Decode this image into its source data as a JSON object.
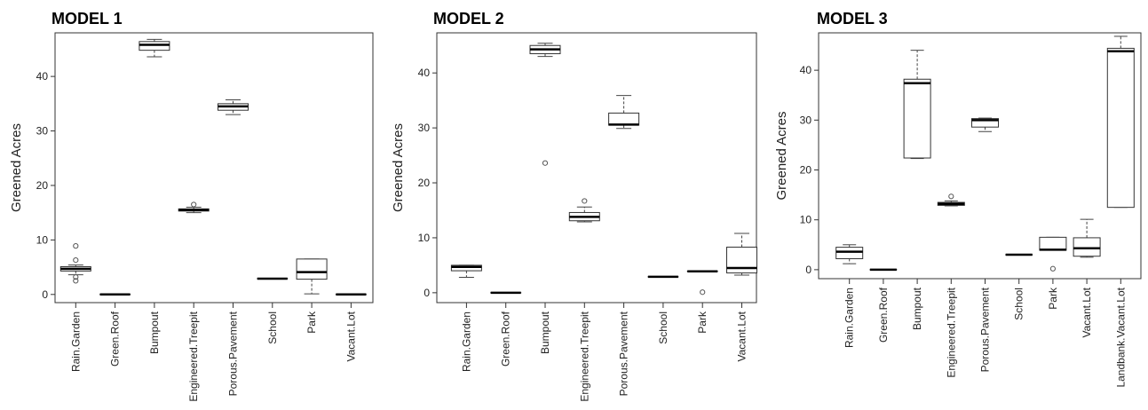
{
  "chart_data": [
    {
      "type": "boxplot",
      "title": "MODEL 1",
      "ylabel": "Greened Acres",
      "xlabel": "",
      "ylim": [
        -1.5,
        48
      ],
      "yticks": [
        0,
        10,
        20,
        30,
        40
      ],
      "categories": [
        "Rain.Garden",
        "Green.Roof",
        "Bumpout",
        "Engineered.Treepit",
        "Porous.Pavement",
        "School",
        "Park",
        "Vacant.Lot"
      ],
      "boxes": [
        {
          "min": 3.6,
          "q1": 4.3,
          "median": 4.7,
          "q3": 5.1,
          "max": 5.4,
          "outliers": [
            8.9,
            6.3,
            3.2,
            2.5
          ]
        },
        {
          "min": 0,
          "q1": 0,
          "median": 0,
          "q3": 0,
          "max": 0,
          "outliers": []
        },
        {
          "min": 43.6,
          "q1": 44.8,
          "median": 45.8,
          "q3": 46.4,
          "max": 46.8,
          "outliers": []
        },
        {
          "min": 15.0,
          "q1": 15.3,
          "median": 15.5,
          "q3": 15.7,
          "max": 16.0,
          "outliers": [
            16.5
          ]
        },
        {
          "min": 33.0,
          "q1": 33.8,
          "median": 34.5,
          "q3": 35.0,
          "max": 35.7,
          "outliers": []
        },
        {
          "min": 2.9,
          "q1": 2.9,
          "median": 2.9,
          "q3": 2.9,
          "max": 2.9,
          "outliers": []
        },
        {
          "min": 0.1,
          "q1": 2.8,
          "median": 4.1,
          "q3": 6.5,
          "max": 6.5,
          "outliers": []
        },
        {
          "min": 0,
          "q1": 0,
          "median": 0,
          "q3": 0,
          "max": 0,
          "outliers": []
        }
      ]
    },
    {
      "type": "boxplot",
      "title": "MODEL 2",
      "ylabel": "Greened Acres",
      "xlabel": "",
      "ylim": [
        -1.8,
        47.3
      ],
      "yticks": [
        0,
        10,
        20,
        30,
        40
      ],
      "categories": [
        "Rain.Garden",
        "Green.Roof",
        "Bumpout",
        "Engineered.Treepit",
        "Porous.Pavement",
        "School",
        "Park",
        "Vacant.Lot"
      ],
      "boxes": [
        {
          "min": 2.8,
          "q1": 4.0,
          "median": 4.7,
          "q3": 5.0,
          "max": 5.0,
          "outliers": []
        },
        {
          "min": 0,
          "q1": 0,
          "median": 0,
          "q3": 0,
          "max": 0,
          "outliers": []
        },
        {
          "min": 43.0,
          "q1": 43.5,
          "median": 44.3,
          "q3": 45.0,
          "max": 45.4,
          "outliers": [
            23.6
          ]
        },
        {
          "min": 12.9,
          "q1": 13.1,
          "median": 13.8,
          "q3": 14.6,
          "max": 15.6,
          "outliers": [
            16.7
          ]
        },
        {
          "min": 29.9,
          "q1": 30.5,
          "median": 30.6,
          "q3": 32.7,
          "max": 35.9,
          "outliers": []
        },
        {
          "min": 2.9,
          "q1": 2.9,
          "median": 2.9,
          "q3": 2.9,
          "max": 2.9,
          "outliers": []
        },
        {
          "min": 3.9,
          "q1": 3.9,
          "median": 3.9,
          "q3": 3.9,
          "max": 3.9,
          "outliers": [
            0.1
          ]
        },
        {
          "min": 3.2,
          "q1": 3.6,
          "median": 4.5,
          "q3": 8.3,
          "max": 10.8,
          "outliers": []
        }
      ]
    },
    {
      "type": "boxplot",
      "title": "MODEL 3",
      "ylabel": "Greened Acres",
      "xlabel": "",
      "ylim": [
        -1.8,
        47.5
      ],
      "yticks": [
        0,
        10,
        20,
        30,
        40
      ],
      "categories": [
        "Rain.Garden",
        "Green.Roof",
        "Bumpout",
        "Engineered.Treepit",
        "Porous.Pavement",
        "School",
        "Park",
        "Vacant.Lot",
        "Landbank.Vacant.Lot"
      ],
      "boxes": [
        {
          "min": 1.2,
          "q1": 2.2,
          "median": 3.6,
          "q3": 4.5,
          "max": 5.0,
          "outliers": []
        },
        {
          "min": 0,
          "q1": 0,
          "median": 0,
          "q3": 0,
          "max": 0,
          "outliers": []
        },
        {
          "min": 22.3,
          "q1": 22.4,
          "median": 37.4,
          "q3": 38.2,
          "max": 44.0,
          "outliers": []
        },
        {
          "min": 12.8,
          "q1": 12.9,
          "median": 13.2,
          "q3": 13.5,
          "max": 13.8,
          "outliers": [
            14.7
          ]
        },
        {
          "min": 27.7,
          "q1": 28.6,
          "median": 30.0,
          "q3": 30.3,
          "max": 30.4,
          "outliers": []
        },
        {
          "min": 3.0,
          "q1": 3.0,
          "median": 3.0,
          "q3": 3.0,
          "max": 3.0,
          "outliers": []
        },
        {
          "min": 3.9,
          "q1": 3.9,
          "median": 4.0,
          "q3": 6.5,
          "max": 6.5,
          "outliers": [
            0.2
          ]
        },
        {
          "min": 2.5,
          "q1": 2.7,
          "median": 4.3,
          "q3": 6.4,
          "max": 10.1,
          "outliers": []
        },
        {
          "min": 12.5,
          "q1": 12.5,
          "median": 43.8,
          "q3": 44.4,
          "max": 46.8,
          "outliers": []
        }
      ]
    }
  ]
}
